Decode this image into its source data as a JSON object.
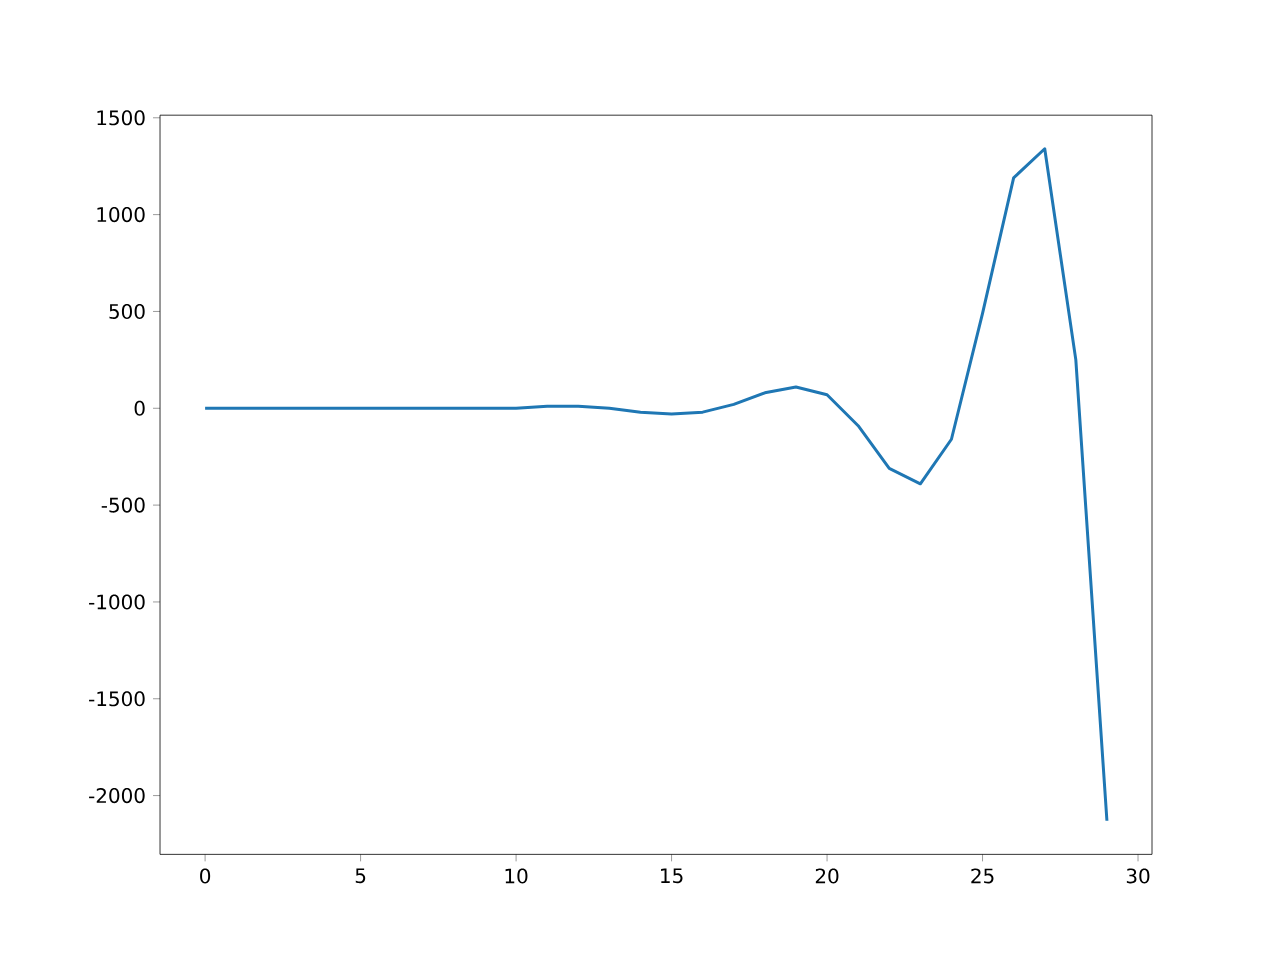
{
  "chart_data": {
    "type": "line",
    "color": "#1f77b4",
    "x": [
      0,
      1,
      2,
      3,
      4,
      5,
      6,
      7,
      8,
      9,
      10,
      11,
      12,
      13,
      14,
      15,
      16,
      17,
      18,
      19,
      20,
      21,
      22,
      23,
      24,
      25,
      26,
      27,
      28,
      29
    ],
    "values": [
      0,
      0,
      0,
      0,
      0,
      0,
      0,
      0,
      0,
      0,
      0,
      10,
      10,
      0,
      -20,
      -30,
      -20,
      20,
      80,
      110,
      70,
      -90,
      -310,
      -390,
      -160,
      490,
      1190,
      1340,
      250,
      -2130
    ],
    "xlim": [
      -1.45,
      30.45
    ],
    "ylim": [
      -2303.5,
      1513.5
    ],
    "xticks": [
      0,
      5,
      10,
      15,
      20,
      25,
      30
    ],
    "yticks": [
      -2000,
      -1500,
      -1000,
      -500,
      0,
      500,
      1000,
      1500
    ]
  }
}
